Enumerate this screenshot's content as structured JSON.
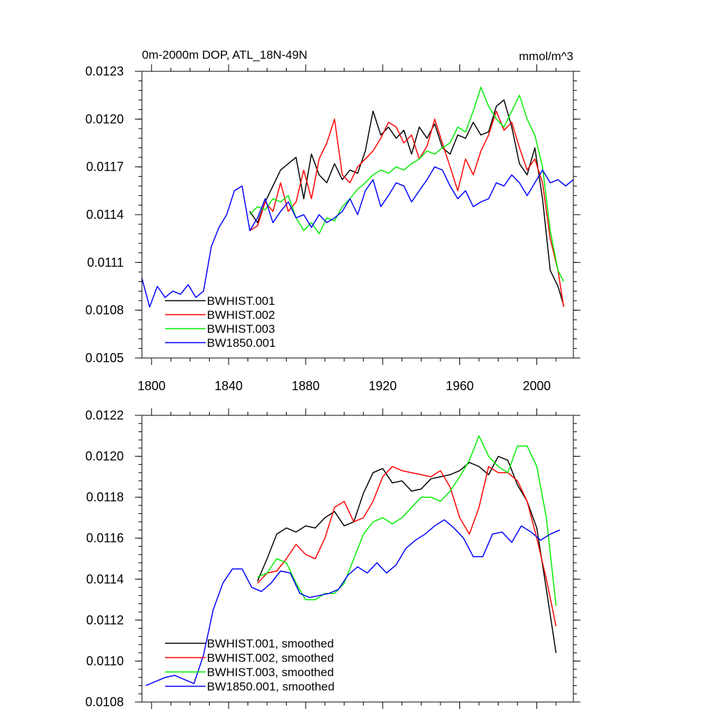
{
  "chart_data": [
    {
      "type": "line",
      "title": "0m-2000m DOP, ATL_18N-49N",
      "units_label": "mmol/m^3",
      "xlabel": "",
      "ylabel": "",
      "xlim": [
        1795,
        2019
      ],
      "ylim": [
        0.0105,
        0.0123
      ],
      "xticks": [
        1800,
        1840,
        1880,
        1920,
        1960,
        2000
      ],
      "xtick_labels": [
        "1800",
        "1840",
        "1880",
        "1920",
        "1960",
        "2000"
      ],
      "yticks": [
        0.0105,
        0.0108,
        0.0111,
        0.0114,
        0.0117,
        0.012,
        0.0123
      ],
      "ytick_labels": [
        "0.0105",
        "0.0108",
        "0.0111",
        "0.0114",
        "0.0117",
        "0.0120",
        "0.0123"
      ],
      "legend_position": "bottom-left",
      "series": [
        {
          "name": "BWHIST.001",
          "color": "#000000",
          "x": [
            1851,
            1855,
            1859,
            1863,
            1867,
            1871,
            1875,
            1879,
            1883,
            1887,
            1891,
            1895,
            1899,
            1903,
            1907,
            1911,
            1915,
            1919,
            1923,
            1927,
            1931,
            1935,
            1939,
            1943,
            1947,
            1951,
            1955,
            1959,
            1963,
            1967,
            1971,
            1975,
            1979,
            1983,
            1987,
            1991,
            1995,
            1999,
            2003,
            2007,
            2011,
            2014
          ],
          "y": [
            0.01142,
            0.01135,
            0.01148,
            0.01158,
            0.01168,
            0.01172,
            0.01176,
            0.0115,
            0.01178,
            0.01165,
            0.0116,
            0.01172,
            0.01162,
            0.01168,
            0.01166,
            0.0118,
            0.01205,
            0.0119,
            0.01195,
            0.01188,
            0.01193,
            0.01178,
            0.01195,
            0.01188,
            0.01197,
            0.01182,
            0.01178,
            0.0119,
            0.01188,
            0.01198,
            0.0119,
            0.01192,
            0.01208,
            0.01212,
            0.01195,
            0.01172,
            0.01165,
            0.01182,
            0.0115,
            0.01105,
            0.01095,
            0.01083
          ]
        },
        {
          "name": "BWHIST.002",
          "color": "#ff0000",
          "x": [
            1851,
            1855,
            1859,
            1863,
            1867,
            1871,
            1875,
            1879,
            1883,
            1887,
            1891,
            1895,
            1899,
            1903,
            1907,
            1911,
            1915,
            1919,
            1923,
            1927,
            1931,
            1935,
            1939,
            1943,
            1947,
            1951,
            1955,
            1959,
            1963,
            1967,
            1971,
            1975,
            1979,
            1983,
            1987,
            1991,
            1995,
            1999,
            2003,
            2007,
            2011,
            2014
          ],
          "y": [
            0.0113,
            0.01133,
            0.01148,
            0.01142,
            0.0116,
            0.01142,
            0.01148,
            0.01168,
            0.0115,
            0.01175,
            0.01185,
            0.012,
            0.01165,
            0.0116,
            0.0117,
            0.01175,
            0.0118,
            0.01188,
            0.01198,
            0.01195,
            0.01185,
            0.0119,
            0.01175,
            0.01183,
            0.012,
            0.01185,
            0.0117,
            0.01155,
            0.01175,
            0.01165,
            0.0118,
            0.0119,
            0.01205,
            0.01193,
            0.01198,
            0.01182,
            0.01168,
            0.01175,
            0.0116,
            0.01125,
            0.01105,
            0.01082
          ]
        },
        {
          "name": "BWHIST.003",
          "color": "#00ee00",
          "x": [
            1851,
            1855,
            1859,
            1863,
            1867,
            1871,
            1875,
            1879,
            1883,
            1887,
            1891,
            1895,
            1899,
            1903,
            1907,
            1911,
            1915,
            1919,
            1923,
            1927,
            1931,
            1935,
            1939,
            1943,
            1947,
            1951,
            1955,
            1959,
            1963,
            1967,
            1971,
            1975,
            1979,
            1983,
            1987,
            1991,
            1995,
            1999,
            2003,
            2007,
            2011,
            2014
          ],
          "y": [
            0.0114,
            0.01145,
            0.01143,
            0.0115,
            0.01148,
            0.01152,
            0.01138,
            0.0113,
            0.01135,
            0.01128,
            0.01138,
            0.01136,
            0.01145,
            0.0115,
            0.01156,
            0.0116,
            0.01165,
            0.01168,
            0.01166,
            0.0117,
            0.01168,
            0.01172,
            0.01175,
            0.0118,
            0.01178,
            0.01182,
            0.01185,
            0.01195,
            0.01192,
            0.01205,
            0.0122,
            0.01208,
            0.012,
            0.01195,
            0.01205,
            0.01215,
            0.012,
            0.0119,
            0.0117,
            0.0113,
            0.01105,
            0.01098
          ]
        },
        {
          "name": "BW1850.001",
          "color": "#0000ff",
          "x": [
            1795,
            1799,
            1803,
            1807,
            1811,
            1815,
            1819,
            1823,
            1827,
            1831,
            1835,
            1839,
            1843,
            1847,
            1851,
            1855,
            1859,
            1863,
            1867,
            1871,
            1875,
            1879,
            1883,
            1887,
            1891,
            1895,
            1899,
            1903,
            1907,
            1911,
            1915,
            1919,
            1923,
            1927,
            1931,
            1935,
            1939,
            1943,
            1947,
            1951,
            1955,
            1959,
            1963,
            1967,
            1971,
            1975,
            1979,
            1983,
            1987,
            1991,
            1995,
            1999,
            2003,
            2007,
            2011,
            2015,
            2019
          ],
          "y": [
            0.011,
            0.01082,
            0.01095,
            0.01088,
            0.01092,
            0.0109,
            0.01096,
            0.01088,
            0.01092,
            0.0112,
            0.01132,
            0.0114,
            0.01155,
            0.01158,
            0.0113,
            0.01138,
            0.0115,
            0.01135,
            0.01142,
            0.01148,
            0.01138,
            0.0114,
            0.01132,
            0.0114,
            0.01135,
            0.01138,
            0.01142,
            0.0115,
            0.0114,
            0.01155,
            0.01162,
            0.01145,
            0.01152,
            0.0116,
            0.01158,
            0.01148,
            0.01155,
            0.01162,
            0.0117,
            0.01168,
            0.01158,
            0.0115,
            0.01155,
            0.01145,
            0.01148,
            0.0115,
            0.0116,
            0.01158,
            0.01165,
            0.0116,
            0.01152,
            0.0116,
            0.01168,
            0.0116,
            0.01162,
            0.01158,
            0.01162
          ]
        }
      ]
    },
    {
      "type": "line",
      "title": "",
      "xlabel": "",
      "ylabel": "",
      "xlim": [
        1795,
        2019
      ],
      "ylim": [
        0.0108,
        0.0122
      ],
      "xticks": [
        1800,
        1840,
        1880,
        1920,
        1960,
        2000
      ],
      "yticks": [
        0.0108,
        0.011,
        0.0112,
        0.0114,
        0.0116,
        0.0118,
        0.012,
        0.0122
      ],
      "ytick_labels": [
        "0.0108",
        "0.0110",
        "0.0112",
        "0.0114",
        "0.0116",
        "0.0118",
        "0.0120",
        "0.0122"
      ],
      "legend_position": "bottom-left",
      "series": [
        {
          "name": "BWHIST.001, smoothed",
          "color": "#000000",
          "x": [
            1855,
            1860,
            1865,
            1870,
            1875,
            1880,
            1885,
            1890,
            1895,
            1900,
            1905,
            1910,
            1915,
            1920,
            1925,
            1930,
            1935,
            1940,
            1945,
            1950,
            1955,
            1960,
            1965,
            1970,
            1975,
            1980,
            1985,
            1990,
            1995,
            2000,
            2005,
            2010
          ],
          "y": [
            0.01139,
            0.0115,
            0.01162,
            0.01165,
            0.01163,
            0.01166,
            0.01165,
            0.0117,
            0.01173,
            0.01166,
            0.01168,
            0.01182,
            0.01192,
            0.01194,
            0.01187,
            0.01188,
            0.01183,
            0.01184,
            0.01189,
            0.0119,
            0.01191,
            0.01193,
            0.01197,
            0.01195,
            0.01191,
            0.012,
            0.01198,
            0.01186,
            0.01178,
            0.01165,
            0.01135,
            0.01104
          ]
        },
        {
          "name": "BWHIST.002, smoothed",
          "color": "#ff0000",
          "x": [
            1855,
            1860,
            1865,
            1870,
            1875,
            1880,
            1885,
            1890,
            1895,
            1900,
            1905,
            1910,
            1915,
            1920,
            1925,
            1930,
            1935,
            1940,
            1945,
            1950,
            1955,
            1960,
            1965,
            1970,
            1975,
            1980,
            1985,
            1990,
            1995,
            2000,
            2005,
            2010
          ],
          "y": [
            0.01138,
            0.01143,
            0.01144,
            0.0115,
            0.01157,
            0.01152,
            0.0115,
            0.0116,
            0.01175,
            0.01178,
            0.01168,
            0.0117,
            0.01178,
            0.0119,
            0.01195,
            0.01193,
            0.01192,
            0.01191,
            0.0119,
            0.01193,
            0.01185,
            0.0117,
            0.01162,
            0.01175,
            0.01195,
            0.01192,
            0.01192,
            0.01188,
            0.01178,
            0.0116,
            0.0114,
            0.01117
          ]
        },
        {
          "name": "BWHIST.003, smoothed",
          "color": "#00ee00",
          "x": [
            1855,
            1860,
            1865,
            1870,
            1875,
            1880,
            1885,
            1890,
            1895,
            1900,
            1905,
            1910,
            1915,
            1920,
            1925,
            1930,
            1935,
            1940,
            1945,
            1950,
            1955,
            1960,
            1965,
            1970,
            1975,
            1980,
            1985,
            1990,
            1995,
            2000,
            2005,
            2010
          ],
          "y": [
            0.01141,
            0.01143,
            0.0115,
            0.01148,
            0.01138,
            0.0113,
            0.0113,
            0.01133,
            0.01133,
            0.01138,
            0.0115,
            0.01162,
            0.01168,
            0.0117,
            0.01167,
            0.0117,
            0.01175,
            0.0118,
            0.0118,
            0.01178,
            0.01183,
            0.0119,
            0.01198,
            0.0121,
            0.012,
            0.01195,
            0.01192,
            0.01205,
            0.01205,
            0.01195,
            0.0117,
            0.01127
          ]
        },
        {
          "name": "BW1850.001, smoothed",
          "color": "#0000ff",
          "x": [
            1797,
            1802,
            1807,
            1812,
            1817,
            1822,
            1827,
            1832,
            1837,
            1842,
            1847,
            1852,
            1857,
            1862,
            1867,
            1872,
            1877,
            1882,
            1887,
            1892,
            1897,
            1902,
            1907,
            1912,
            1917,
            1922,
            1927,
            1932,
            1937,
            1942,
            1947,
            1952,
            1957,
            1962,
            1967,
            1972,
            1977,
            1982,
            1987,
            1992,
            1997,
            2002,
            2007,
            2012
          ],
          "y": [
            0.01088,
            0.0109,
            0.01092,
            0.01093,
            0.01091,
            0.01089,
            0.01103,
            0.01125,
            0.01138,
            0.01145,
            0.01145,
            0.01136,
            0.01134,
            0.01138,
            0.01144,
            0.01143,
            0.01133,
            0.01131,
            0.01132,
            0.01133,
            0.01135,
            0.01142,
            0.01146,
            0.01143,
            0.01148,
            0.01143,
            0.01147,
            0.01155,
            0.01159,
            0.01162,
            0.01166,
            0.01169,
            0.01165,
            0.0116,
            0.01151,
            0.01151,
            0.01162,
            0.01163,
            0.01158,
            0.01166,
            0.01163,
            0.01159,
            0.01162,
            0.01164
          ]
        }
      ]
    }
  ]
}
